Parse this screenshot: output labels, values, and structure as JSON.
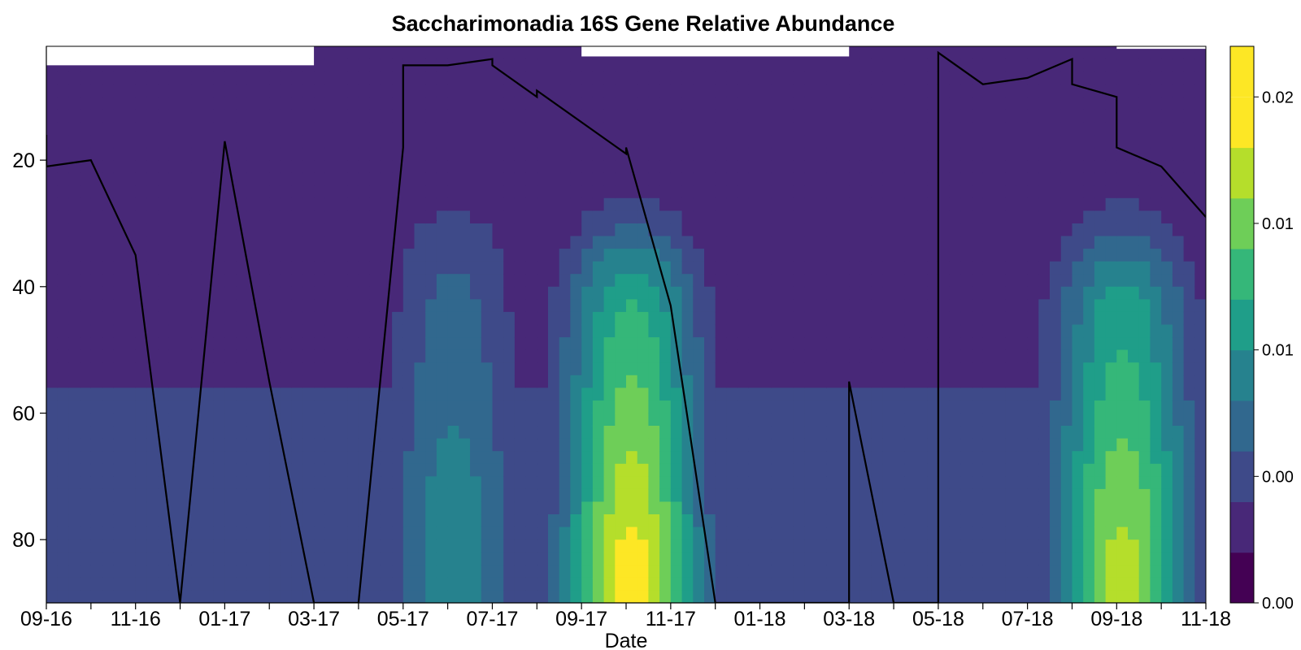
{
  "chart_data": {
    "type": "heatmap",
    "title": "Saccharimonadia 16S Gene Relative Abundance",
    "xlabel": "Date",
    "ylabel": "",
    "x_tick_labels": [
      "09-16",
      "11-16",
      "01-17",
      "03-17",
      "05-17",
      "07-17",
      "09-17",
      "11-17",
      "01-18",
      "03-18",
      "05-18",
      "07-18",
      "09-18",
      "11-18"
    ],
    "y_ticks": [
      20,
      40,
      60,
      80
    ],
    "ylim": [
      90,
      2
    ],
    "y_inverted": true,
    "colorbar": {
      "levels": 11,
      "tick_labels": [
        "0.00",
        "0.00",
        "0.01",
        "0.01",
        "0.02"
      ],
      "colors": [
        "#440154",
        "#482878",
        "#3e4a89",
        "#31688e",
        "#26828e",
        "#1f9e89",
        "#35b779",
        "#6ece58",
        "#b5de2b",
        "#fde725"
      ]
    },
    "depth_rows": [
      5,
      15,
      25,
      35,
      45,
      55,
      65,
      75,
      85,
      90
    ],
    "hotspots": [
      {
        "date": "10-17",
        "depth_min": 45,
        "depth_max": 90,
        "peak_depth": 85,
        "peak_level": 9
      },
      {
        "date": "09-18",
        "depth_min": 45,
        "depth_max": 90,
        "peak_depth": 85,
        "peak_level": 8
      },
      {
        "date": "06-17",
        "depth_min": 40,
        "depth_max": 90,
        "peak_depth": 75,
        "peak_level": 4
      }
    ],
    "line_series": {
      "name": "",
      "color": "#000000",
      "points": [
        [
          "09-16",
          16
        ],
        [
          "09-16",
          21
        ],
        [
          "10-16",
          20
        ],
        [
          "11-16",
          35
        ],
        [
          "12-16",
          90
        ],
        [
          "12-16",
          90
        ],
        [
          "01-17",
          17
        ],
        [
          "02-17",
          55
        ],
        [
          "03-17",
          90
        ],
        [
          "04-17",
          90
        ],
        [
          "05-17",
          18
        ],
        [
          "05-17",
          5
        ],
        [
          "06-17",
          5
        ],
        [
          "07-17",
          4
        ],
        [
          "07-17",
          5
        ],
        [
          "08-17",
          10
        ],
        [
          "08-17",
          9
        ],
        [
          "10-17",
          19
        ],
        [
          "10-17",
          18
        ],
        [
          "11-17",
          43
        ],
        [
          "12-17",
          90
        ],
        [
          "03-18",
          90
        ],
        [
          "03-18",
          55
        ],
        [
          "04-18",
          90
        ],
        [
          "05-18",
          90
        ],
        [
          "05-18",
          3
        ],
        [
          "06-18",
          8
        ],
        [
          "07-18",
          7
        ],
        [
          "08-18",
          4
        ],
        [
          "08-18",
          8
        ],
        [
          "09-18",
          10
        ],
        [
          "09-18",
          18
        ],
        [
          "10-18",
          21
        ],
        [
          "11-18",
          29
        ]
      ]
    }
  }
}
